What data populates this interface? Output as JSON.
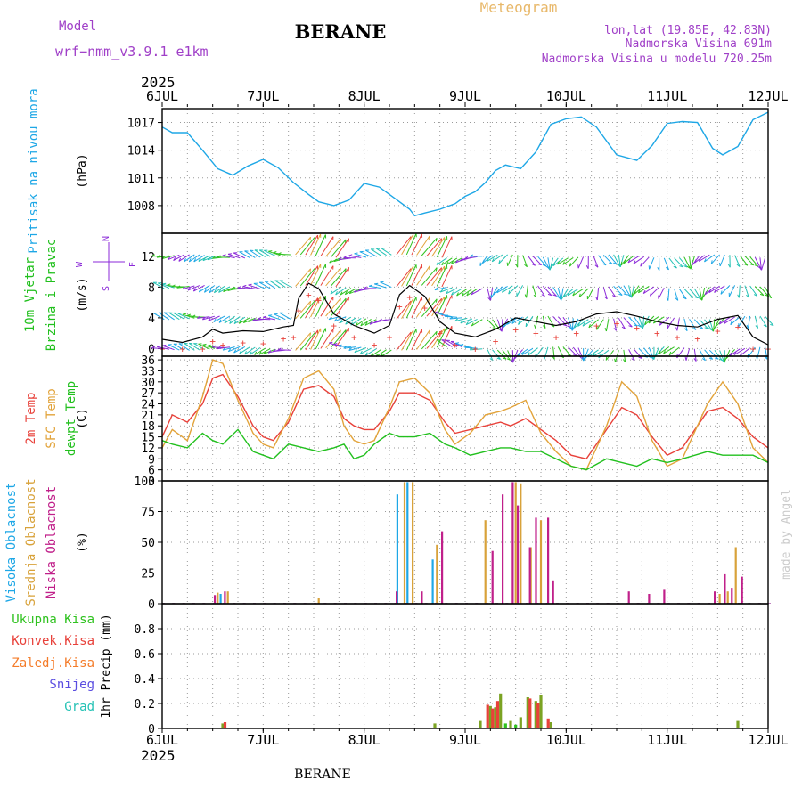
{
  "header": {
    "model_label": "Model",
    "model_name": "wrf−nmm_v3.9.1  e1km",
    "station": "BERANE",
    "product": "Meteogram",
    "coords": "lon,lat (19.85E, 42.83N)",
    "elevation": "Nadmorska Visina 691m",
    "model_elevation": "Nadmorska Visina u modelu 720.25m",
    "footer_station": "BERANE",
    "credit": "made by Angel"
  },
  "colors": {
    "pressure": "#1ea7e6",
    "temp2m": "#e8413a",
    "sfc": "#e2a33a",
    "dew": "#22c01e",
    "high_cloud": "#1ea7e6",
    "mid_cloud": "#d8a23a",
    "low_cloud": "#c0208a",
    "total_precip": "#2fc21f",
    "conv_precip": "#e8413a",
    "frozen_precip": "#f47c2a",
    "snow": "#5a4de0",
    "hail": "#25c2b5",
    "wind_speed": "#000000",
    "wind_levels": "#8b2ad8",
    "axis_text": "#000000"
  },
  "x_axis": {
    "year": "2025",
    "ticks": [
      "6JUL",
      "7JUL",
      "8JUL",
      "9JUL",
      "10JUL",
      "11JUL",
      "12JUL"
    ]
  },
  "chart_data": [
    {
      "type": "line",
      "panel": "pressure",
      "ylabel_left": "Pritisak na nivou mora",
      "unit": "(hPa)",
      "ylim": [
        1005,
        1018.5
      ],
      "yticks": [
        "1008",
        "1011",
        "1014",
        "1017"
      ],
      "grid": true,
      "series": [
        {
          "name": "Pritisak na nivou mora",
          "x": [
            0,
            0.1,
            0.25,
            0.4,
            0.55,
            0.7,
            0.85,
            1.0,
            1.15,
            1.3,
            1.45,
            1.55,
            1.7,
            1.85,
            2.0,
            2.15,
            2.3,
            2.45,
            2.5,
            2.6,
            2.75,
            2.9,
            3.0,
            3.1,
            3.2,
            3.3,
            3.4,
            3.55,
            3.7,
            3.85,
            4.0,
            4.15,
            4.3,
            4.5,
            4.7,
            4.85,
            5.0,
            5.15,
            5.3,
            5.45,
            5.55,
            5.7,
            5.85,
            6.0
          ],
          "y": [
            1016.5,
            1015.9,
            1015.9,
            1014.0,
            1012.0,
            1011.3,
            1012.3,
            1013.0,
            1012.1,
            1010.5,
            1009.2,
            1008.4,
            1008.0,
            1008.6,
            1010.4,
            1010.0,
            1008.8,
            1007.6,
            1006.9,
            1007.2,
            1007.6,
            1008.2,
            1009.0,
            1009.5,
            1010.5,
            1011.8,
            1012.4,
            1012.0,
            1013.8,
            1016.8,
            1017.4,
            1017.6,
            1016.5,
            1013.5,
            1012.9,
            1014.5,
            1016.9,
            1017.1,
            1017.0,
            1014.2,
            1013.5,
            1014.4,
            1017.3,
            1018.1
          ]
        }
      ]
    },
    {
      "type": "line",
      "panel": "wind",
      "ylabel_left": [
        "10m Vjetar",
        "Brzina i Pravac"
      ],
      "unit": "(m/s)",
      "compass": {
        "n": "N",
        "s": "S",
        "e": "E",
        "w": "W"
      },
      "ylim": [
        -1,
        15
      ],
      "yticks": [
        "0",
        "4",
        "8",
        "12"
      ],
      "grid": true,
      "series": [
        {
          "name": "10m Vjetar",
          "x": [
            0,
            0.2,
            0.4,
            0.5,
            0.6,
            0.8,
            1.0,
            1.2,
            1.3,
            1.35,
            1.45,
            1.55,
            1.7,
            1.9,
            2.1,
            2.25,
            2.35,
            2.45,
            2.6,
            2.75,
            2.9,
            3.1,
            3.3,
            3.5,
            3.7,
            3.9,
            4.1,
            4.3,
            4.5,
            4.7,
            4.9,
            5.1,
            5.3,
            5.5,
            5.7,
            5.85,
            6.0
          ],
          "y": [
            1.2,
            0.8,
            1.5,
            2.5,
            2.0,
            2.3,
            2.2,
            2.8,
            3.0,
            6.5,
            8.5,
            7.8,
            4.5,
            3.0,
            2.0,
            3.0,
            7.0,
            8.2,
            6.8,
            3.5,
            2.0,
            1.5,
            2.5,
            4.0,
            3.5,
            3.0,
            3.5,
            4.5,
            4.8,
            4.2,
            3.5,
            3.0,
            2.8,
            3.8,
            4.3,
            1.5,
            0.5
          ]
        }
      ],
      "arrow_levels": [
        0,
        4,
        8,
        12
      ]
    },
    {
      "type": "line",
      "panel": "temperature",
      "ylabel_left": [
        "2m Temp",
        "SFC Temp",
        "dewpt Temp"
      ],
      "unit": "(C)",
      "ylim": [
        3,
        37
      ],
      "yticks": [
        "3",
        "6",
        "9",
        "12",
        "15",
        "18",
        "21",
        "24",
        "27",
        "30",
        "33",
        "36"
      ],
      "grid": true,
      "series": [
        {
          "name": "2m Temp",
          "x": [
            0,
            0.1,
            0.25,
            0.4,
            0.5,
            0.6,
            0.75,
            0.9,
            1.0,
            1.1,
            1.25,
            1.4,
            1.55,
            1.7,
            1.8,
            1.9,
            2.0,
            2.1,
            2.25,
            2.35,
            2.5,
            2.65,
            2.8,
            2.9,
            3.05,
            3.2,
            3.35,
            3.45,
            3.6,
            3.75,
            3.9,
            4.05,
            4.2,
            4.4,
            4.55,
            4.7,
            4.85,
            5.0,
            5.15,
            5.4,
            5.55,
            5.7,
            5.85,
            6.0
          ],
          "y": [
            15,
            21,
            19,
            24,
            31,
            32,
            26,
            18,
            15,
            14,
            19,
            28,
            29,
            26,
            20,
            18,
            17,
            17,
            22,
            27,
            27,
            25,
            19,
            16,
            17,
            18,
            19,
            18,
            20,
            17,
            14,
            10,
            9,
            17,
            23,
            21,
            15,
            10,
            12,
            22,
            23,
            20,
            15,
            12
          ]
        },
        {
          "name": "SFC Temp",
          "x": [
            0,
            0.1,
            0.25,
            0.4,
            0.5,
            0.6,
            0.75,
            0.9,
            1.0,
            1.1,
            1.25,
            1.4,
            1.55,
            1.7,
            1.8,
            1.9,
            2.0,
            2.1,
            2.25,
            2.35,
            2.5,
            2.65,
            2.8,
            2.9,
            3.05,
            3.2,
            3.35,
            3.45,
            3.6,
            3.75,
            3.9,
            4.05,
            4.2,
            4.4,
            4.55,
            4.7,
            4.85,
            5.0,
            5.15,
            5.4,
            5.55,
            5.7,
            5.85,
            6.0
          ],
          "y": [
            12,
            17,
            14,
            26,
            36,
            35,
            25,
            16,
            13,
            12,
            20,
            31,
            33,
            28,
            18,
            14,
            13,
            14,
            23,
            30,
            31,
            27,
            17,
            13,
            16,
            21,
            22,
            23,
            25,
            16,
            11,
            7,
            6,
            18,
            30,
            26,
            14,
            7,
            9,
            24,
            30,
            24,
            12,
            8
          ]
        },
        {
          "name": "dewpt Temp",
          "x": [
            0,
            0.1,
            0.25,
            0.4,
            0.5,
            0.6,
            0.75,
            0.9,
            1.0,
            1.1,
            1.25,
            1.4,
            1.55,
            1.7,
            1.8,
            1.9,
            2.0,
            2.1,
            2.25,
            2.35,
            2.5,
            2.65,
            2.8,
            2.9,
            3.05,
            3.2,
            3.35,
            3.45,
            3.6,
            3.75,
            3.9,
            4.05,
            4.2,
            4.4,
            4.55,
            4.7,
            4.85,
            5.0,
            5.15,
            5.4,
            5.55,
            5.7,
            5.85,
            6.0
          ],
          "y": [
            14,
            13,
            12,
            16,
            14,
            13,
            17,
            11,
            10,
            9,
            13,
            12,
            11,
            12,
            13,
            9,
            10,
            13,
            16,
            15,
            15,
            16,
            13,
            12,
            10,
            11,
            12,
            12,
            11,
            11,
            9,
            7,
            6,
            9,
            8,
            7,
            9,
            8,
            9,
            11,
            10,
            10,
            10,
            8
          ]
        }
      ]
    },
    {
      "type": "bar",
      "panel": "clouds",
      "ylabel_left": [
        "Visoka Oblacnost",
        "Srednja Oblacnost",
        "Niska Oblacnost"
      ],
      "unit": "(%)",
      "ylim": [
        0,
        100
      ],
      "yticks": [
        "0",
        "25",
        "50",
        "75",
        "100"
      ],
      "grid": true,
      "series": [
        {
          "name": "Visoka Oblacnost",
          "x": [
            0.6,
            2.35,
            2.45,
            2.7
          ],
          "values": [
            8,
            89,
            99,
            36
          ]
        },
        {
          "name": "Srednja Oblacnost",
          "x": [
            0.55,
            0.65,
            1.55,
            2.4,
            2.48,
            2.72,
            3.2,
            3.5,
            3.55,
            3.65,
            3.75,
            5.52,
            5.6,
            5.68
          ],
          "values": [
            9,
            10,
            5,
            99,
            99,
            48,
            68,
            99,
            98,
            46,
            68,
            8,
            10,
            46
          ]
        },
        {
          "name": "Niska Oblacnost",
          "x": [
            0.5,
            0.6,
            2.3,
            2.55,
            2.75,
            3.25,
            3.35,
            3.45,
            3.5,
            3.62,
            3.68,
            3.8,
            3.85,
            4.6,
            4.8,
            4.95,
            5.45,
            5.55,
            5.62,
            5.72
          ],
          "values": [
            7,
            10,
            10,
            10,
            59,
            43,
            89,
            99,
            80,
            46,
            70,
            70,
            19,
            10,
            8,
            12,
            10,
            24,
            13,
            22
          ]
        }
      ]
    },
    {
      "type": "bar",
      "panel": "precipitation",
      "ylabel_left": [
        "Ukupna Kisa",
        "Konvek.Kisa",
        "Zaledj.Kisa",
        "Snijeg",
        "Grad"
      ],
      "unit": "1hr Precip (mm)",
      "ylim": [
        0,
        1.0
      ],
      "yticks": [
        "0",
        "0.2",
        "0.4",
        "0.6",
        "0.8"
      ],
      "grid": true,
      "series": [
        {
          "name": "Ukupna Kisa",
          "x": [
            0.6,
            2.7,
            3.15,
            3.25,
            3.3,
            3.35,
            3.45,
            3.55,
            3.62,
            3.7,
            3.75,
            3.85,
            5.7
          ],
          "values": [
            0.04,
            0.04,
            0.06,
            0.18,
            0.17,
            0.28,
            0.06,
            0.09,
            0.25,
            0.22,
            0.27,
            0.05,
            0.06
          ]
        },
        {
          "name": "Konvek.Kisa",
          "x": [
            0.6,
            3.2,
            3.25,
            3.3,
            3.62,
            3.7,
            3.8
          ],
          "values": [
            0.05,
            0.19,
            0.16,
            0.22,
            0.24,
            0.2,
            0.08
          ]
        },
        {
          "name": "Zaledj.Kisa",
          "x": [],
          "values": []
        },
        {
          "name": "Snijeg",
          "x": [],
          "values": []
        },
        {
          "name": "Grad",
          "x": [
            3.4,
            3.5
          ],
          "values": [
            0.04,
            0.03
          ]
        }
      ]
    }
  ]
}
